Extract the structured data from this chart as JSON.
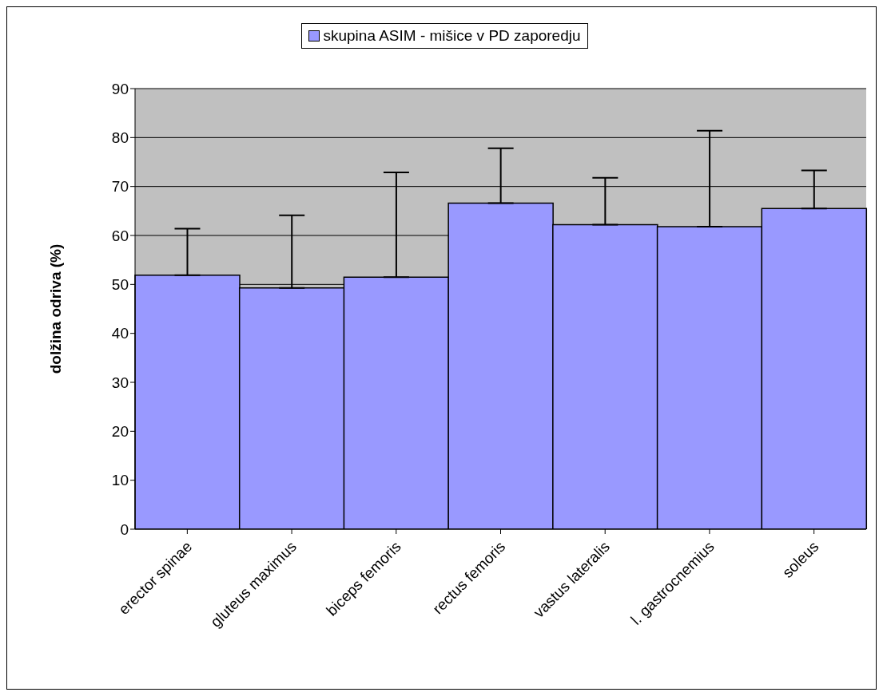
{
  "chart_data": {
    "type": "bar",
    "ylabel": "dolžina odriva (%)",
    "categories": [
      "erector spinae",
      "gluteus maximus",
      "biceps femoris",
      "rectus femoris",
      "vastus lateralis",
      "l. gastrocnemius",
      "soleus"
    ],
    "series": [
      {
        "name": "skupina ASIM - mišice v PD zaporedju",
        "color": "#9999ff",
        "values": [
          51.9,
          49.3,
          51.5,
          66.6,
          62.2,
          61.8,
          65.5
        ],
        "errors": [
          [
            51.9,
            61.4
          ],
          [
            49.3,
            64.1
          ],
          [
            51.5,
            72.9
          ],
          [
            66.6,
            77.8
          ],
          [
            62.2,
            71.8
          ],
          [
            61.8,
            81.4
          ],
          [
            65.5,
            73.3
          ]
        ]
      }
    ],
    "ylim": [
      0,
      90
    ],
    "yticks": [
      0,
      10,
      20,
      30,
      40,
      50,
      60,
      70,
      80,
      90
    ],
    "grid": "y",
    "legend": "top"
  }
}
